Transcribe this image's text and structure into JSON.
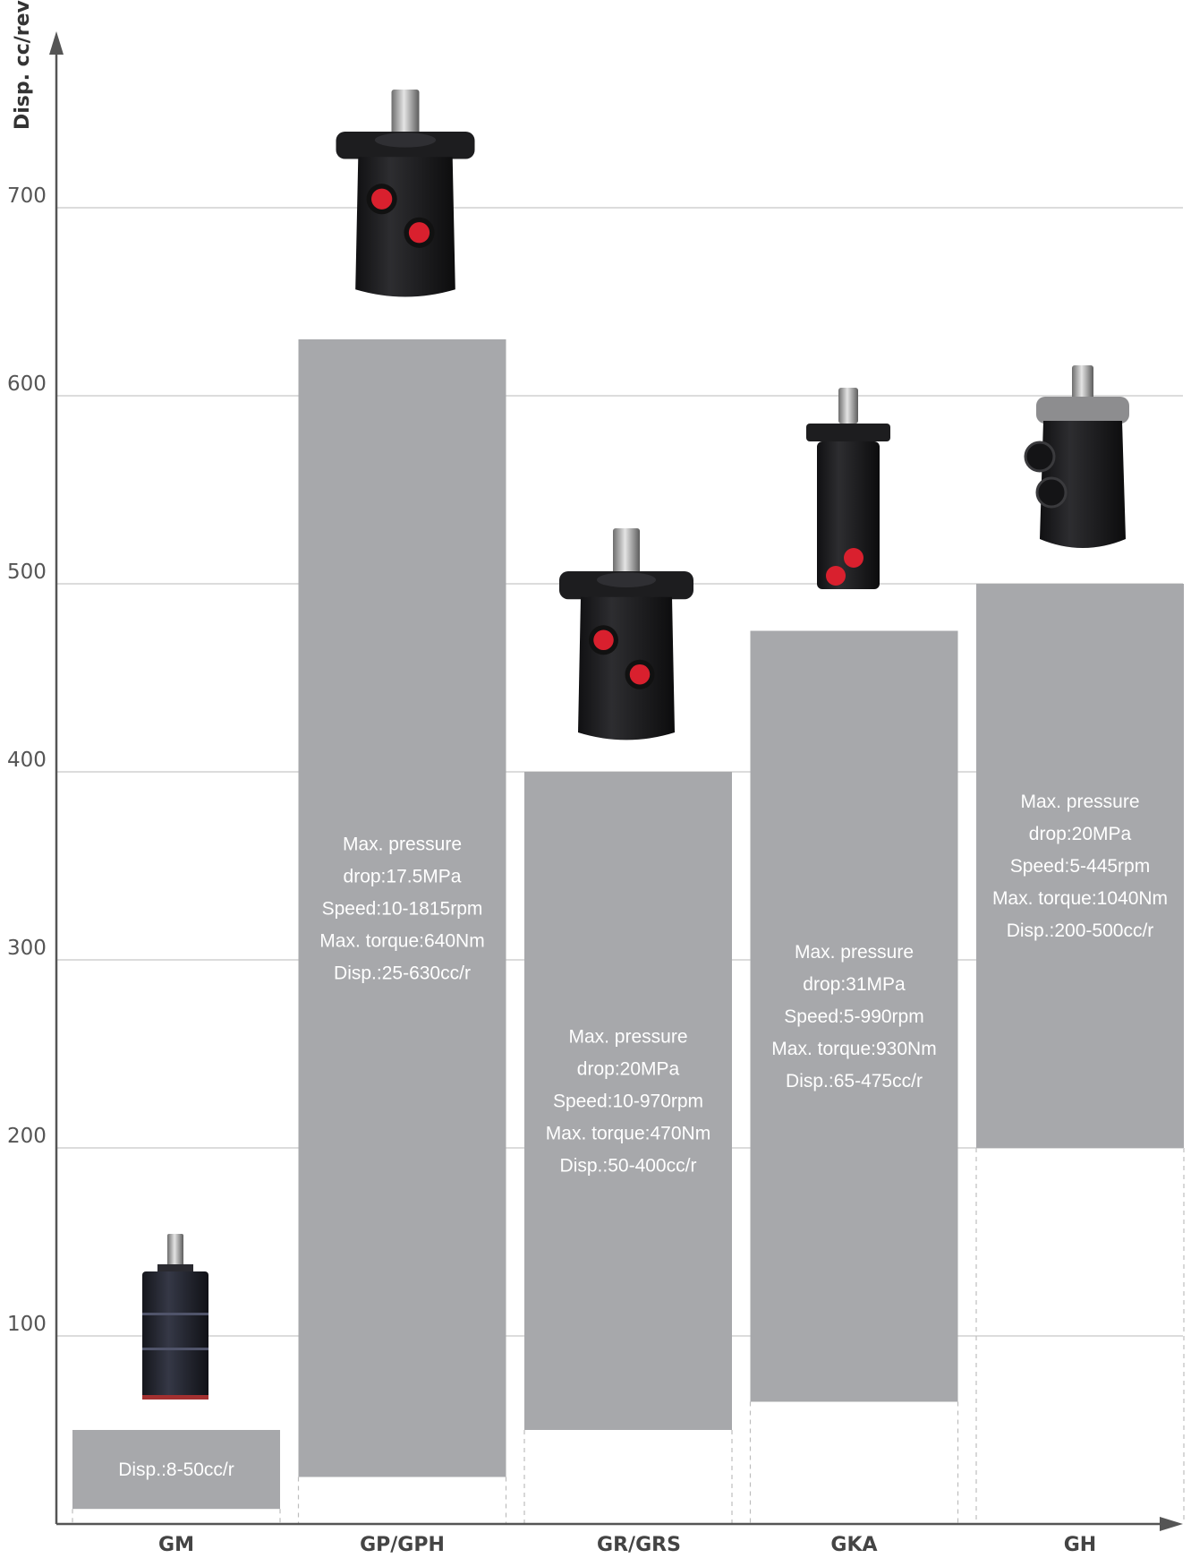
{
  "chart_data": {
    "type": "bar",
    "title": "",
    "xlabel": "",
    "ylabel": "Disp. cc/rev",
    "ylim": [
      0,
      760
    ],
    "yticks": [
      100,
      200,
      300,
      400,
      500,
      600,
      700
    ],
    "grid": true,
    "categories": [
      "GM",
      "GP/GPH",
      "GR/GRS",
      "GKA",
      "GH"
    ],
    "ranges": [
      {
        "category": "GM",
        "low": 8,
        "high": 50,
        "texts": [
          "Disp.:8-50cc/r"
        ]
      },
      {
        "category": "GP/GPH",
        "low": 25,
        "high": 630,
        "texts": [
          "Max. pressure",
          "drop:17.5MPa",
          "Speed:10-1815rpm",
          "Max. torque:640Nm",
          "Disp.:25-630cc/r"
        ]
      },
      {
        "category": "GR/GRS",
        "low": 50,
        "high": 400,
        "texts": [
          "Max. pressure",
          "drop:20MPa",
          "Speed:10-970rpm",
          "Max. torque:470Nm",
          "Disp.:50-400cc/r"
        ]
      },
      {
        "category": "GKA",
        "low": 65,
        "high": 475,
        "texts": [
          "Max. pressure",
          "drop:31MPa",
          "Speed:5-990rpm",
          "Max. torque:930Nm",
          "Disp.:65-475cc/r"
        ]
      },
      {
        "category": "GH",
        "low": 200,
        "high": 500,
        "texts": [
          "Max. pressure",
          "drop:20MPa",
          "Speed:5-445rpm",
          "Max. torque:1040Nm",
          "Disp.:200-500cc/r"
        ]
      }
    ],
    "colors": {
      "bar": "#a7a8ab",
      "grid": "#c8c8c8",
      "axis": "#555555",
      "motor_body": "#1b1b1d",
      "port": "#d9202e"
    }
  }
}
